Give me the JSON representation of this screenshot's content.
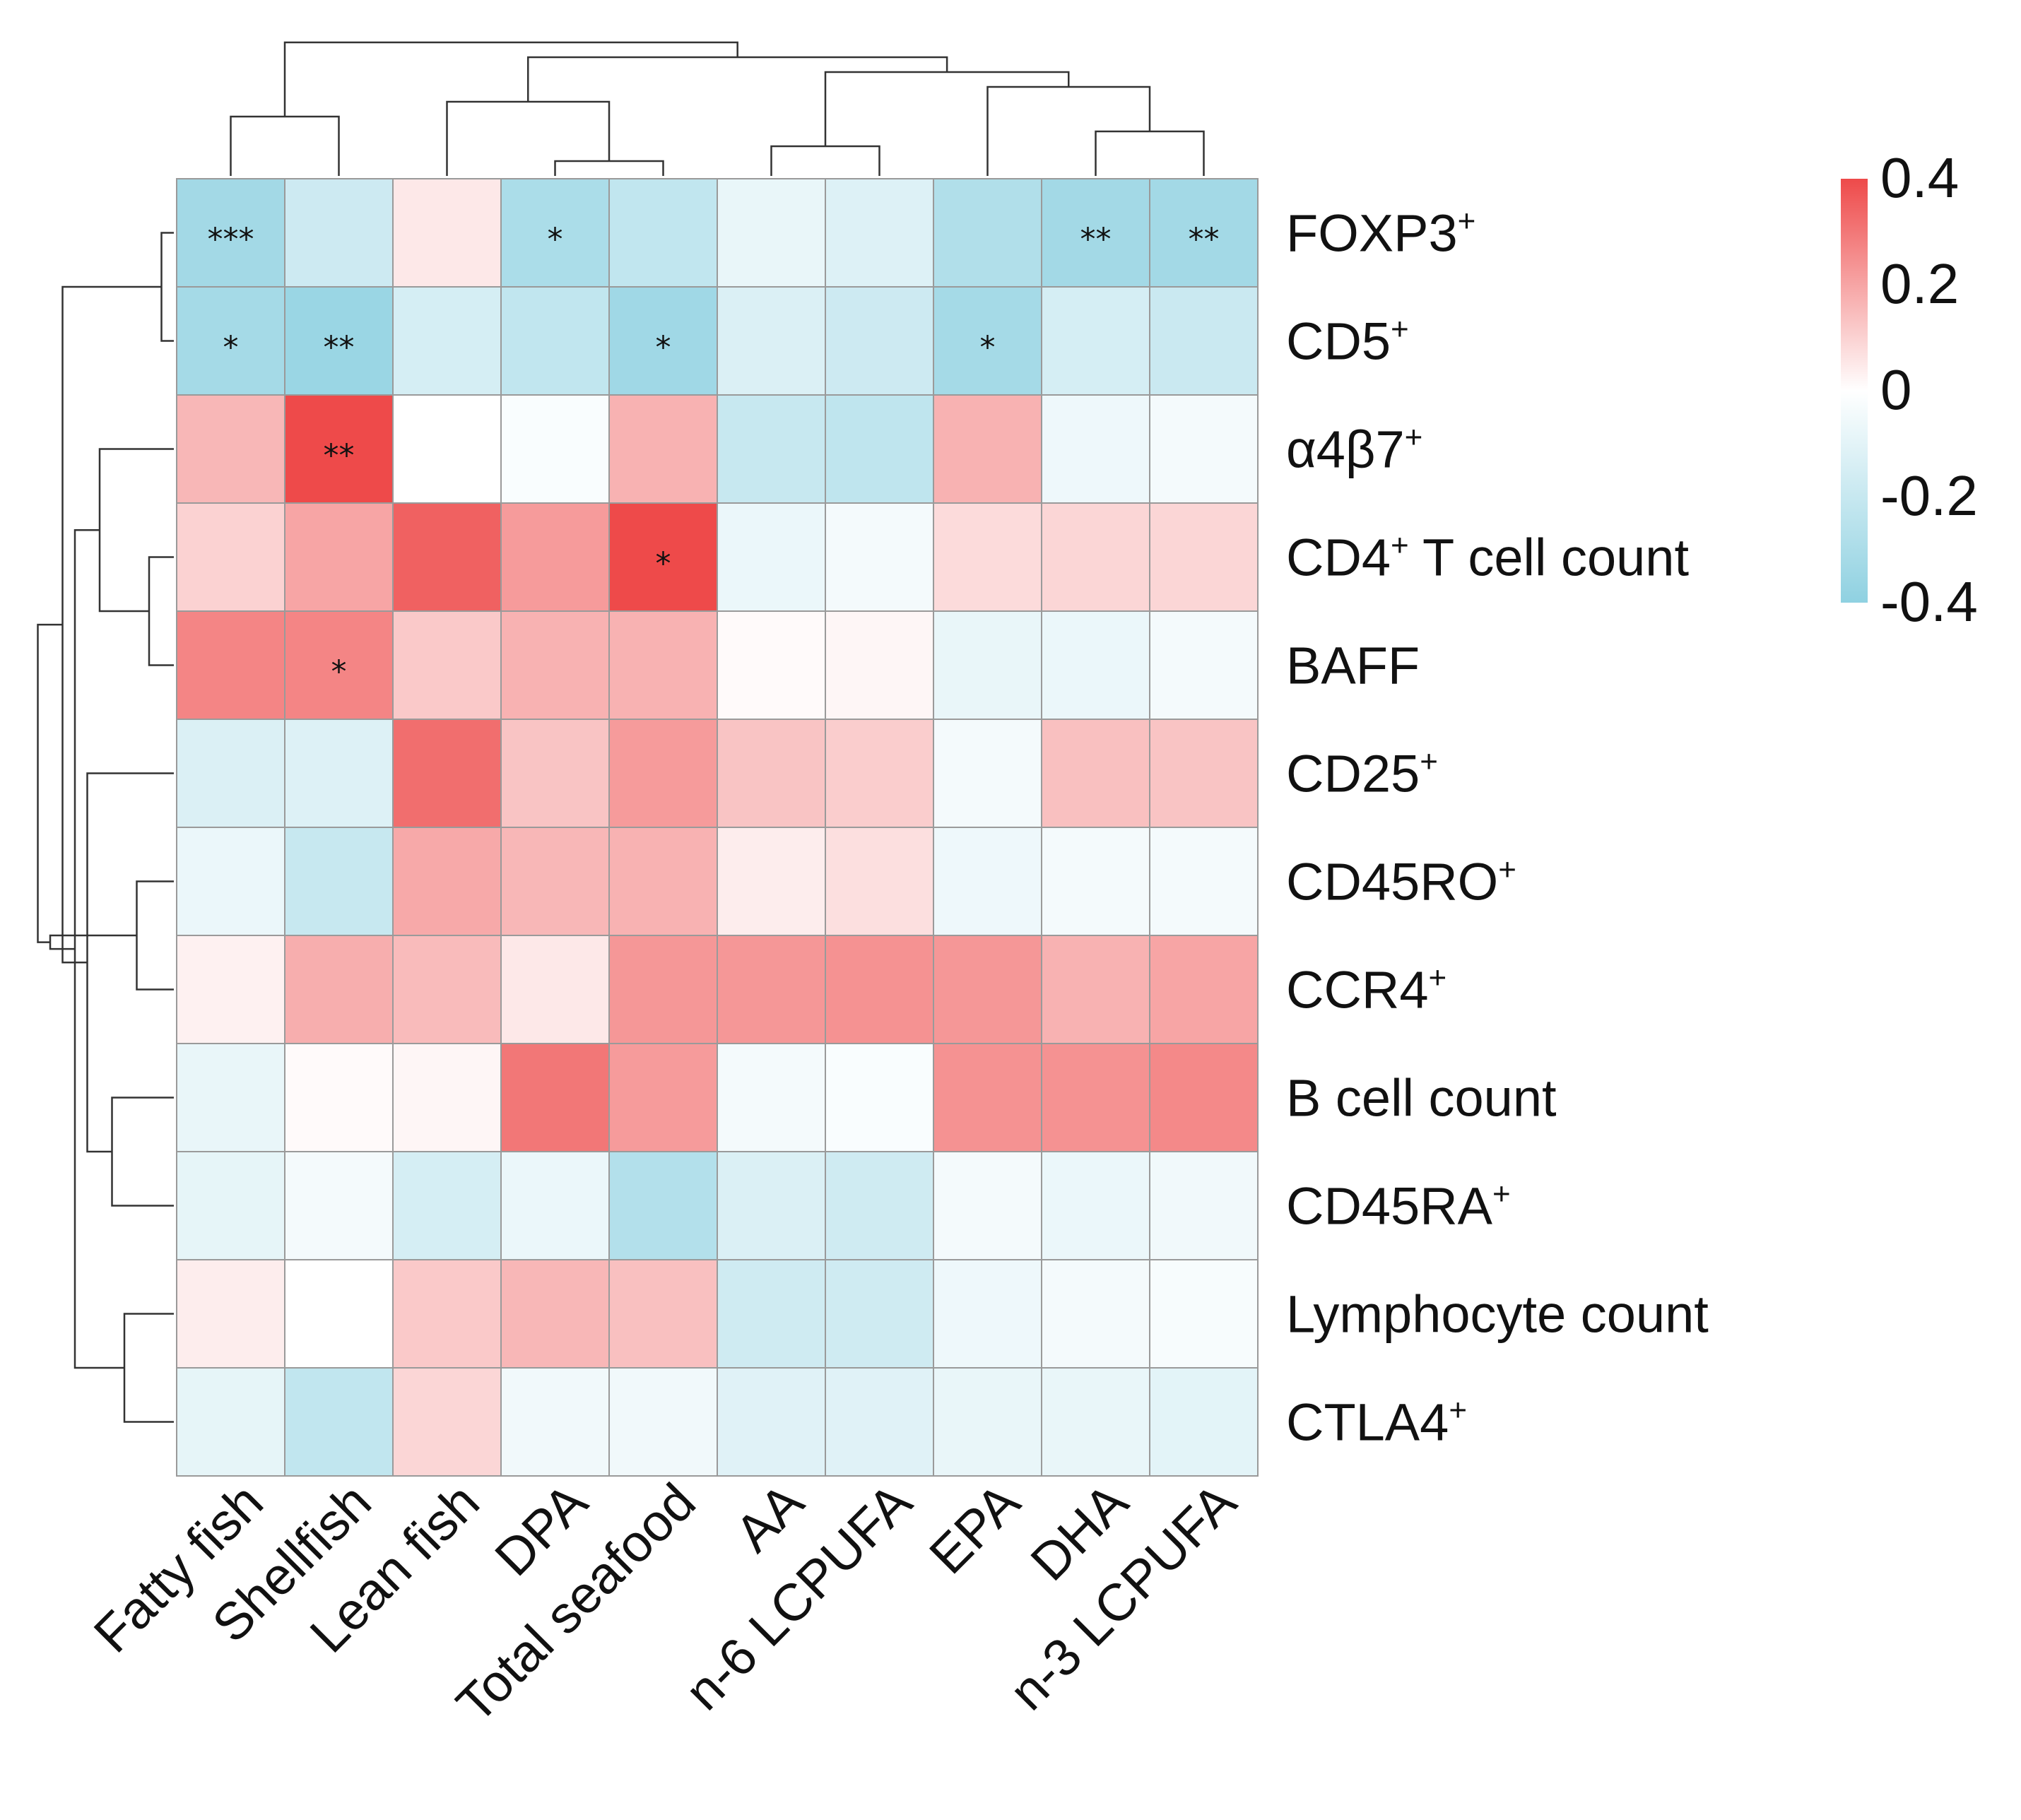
{
  "chart_data": {
    "type": "heatmap",
    "title": "",
    "columns": [
      "Fatty fish",
      "Shellfish",
      "Lean fish",
      "DPA",
      "Total seafood",
      "AA",
      "n-6 LCPUFA",
      "EPA",
      "DHA",
      "n-3 LCPUFA"
    ],
    "rows": [
      {
        "base": "FOXP3",
        "sup": "+",
        "suffix": ""
      },
      {
        "base": "CD5",
        "sup": "+",
        "suffix": ""
      },
      {
        "base": "α4β7",
        "sup": "+",
        "suffix": ""
      },
      {
        "base": "CD4",
        "sup": "+",
        "suffix": " T cell count"
      },
      {
        "base": "BAFF",
        "sup": "",
        "suffix": ""
      },
      {
        "base": "CD25",
        "sup": "+",
        "suffix": ""
      },
      {
        "base": "CD45RO",
        "sup": "+",
        "suffix": ""
      },
      {
        "base": "CCR4",
        "sup": "+",
        "suffix": ""
      },
      {
        "base": "B cell count",
        "sup": "",
        "suffix": ""
      },
      {
        "base": "CD45RA",
        "sup": "+",
        "suffix": ""
      },
      {
        "base": "Lymphocyte count",
        "sup": "",
        "suffix": ""
      },
      {
        "base": "CTLA4",
        "sup": "+",
        "suffix": ""
      }
    ],
    "values": [
      [
        -0.33,
        -0.18,
        0.05,
        -0.3,
        -0.22,
        -0.08,
        -0.12,
        -0.28,
        -0.33,
        -0.33
      ],
      [
        -0.32,
        -0.36,
        -0.15,
        -0.22,
        -0.34,
        -0.13,
        -0.18,
        -0.32,
        -0.15,
        -0.19
      ],
      [
        0.16,
        0.4,
        0.0,
        -0.02,
        0.17,
        -0.2,
        -0.23,
        0.17,
        -0.06,
        -0.04
      ],
      [
        0.1,
        0.2,
        0.35,
        0.22,
        0.4,
        -0.07,
        -0.04,
        0.08,
        0.09,
        0.09
      ],
      [
        0.27,
        0.27,
        0.12,
        0.17,
        0.17,
        0.01,
        0.02,
        -0.08,
        -0.07,
        -0.04
      ],
      [
        -0.13,
        -0.12,
        0.32,
        0.13,
        0.22,
        0.13,
        0.11,
        -0.04,
        0.14,
        0.13
      ],
      [
        -0.07,
        -0.2,
        0.19,
        0.16,
        0.17,
        0.04,
        0.07,
        -0.06,
        -0.04,
        -0.04
      ],
      [
        0.03,
        0.18,
        0.15,
        0.05,
        0.23,
        0.23,
        0.24,
        0.23,
        0.17,
        0.2
      ],
      [
        -0.08,
        0.01,
        0.02,
        0.3,
        0.22,
        -0.04,
        -0.02,
        0.24,
        0.24,
        0.26
      ],
      [
        -0.09,
        -0.04,
        -0.15,
        -0.07,
        -0.27,
        -0.13,
        -0.17,
        -0.04,
        -0.07,
        -0.05
      ],
      [
        0.04,
        0.0,
        0.12,
        0.16,
        0.14,
        -0.17,
        -0.17,
        -0.06,
        -0.04,
        -0.03
      ],
      [
        -0.09,
        -0.22,
        0.09,
        -0.05,
        -0.05,
        -0.11,
        -0.11,
        -0.08,
        -0.08,
        -0.1
      ]
    ],
    "significance": [
      [
        "***",
        "",
        "",
        "*",
        "",
        "",
        "",
        "",
        "**",
        "**"
      ],
      [
        "*",
        "**",
        "",
        "",
        "*",
        "",
        "",
        "*",
        "",
        ""
      ],
      [
        "",
        "**",
        "",
        "",
        "",
        "",
        "",
        "",
        "",
        ""
      ],
      [
        "",
        "",
        "",
        "",
        "*",
        "",
        "",
        "",
        "",
        ""
      ],
      [
        "",
        "*",
        "",
        "",
        "",
        "",
        "",
        "",
        "",
        ""
      ],
      [
        "",
        "",
        "",
        "",
        "",
        "",
        "",
        "",
        "",
        ""
      ],
      [
        "",
        "",
        "",
        "",
        "",
        "",
        "",
        "",
        "",
        ""
      ],
      [
        "",
        "",
        "",
        "",
        "",
        "",
        "",
        "",
        "",
        ""
      ],
      [
        "",
        "",
        "",
        "",
        "",
        "",
        "",
        "",
        "",
        ""
      ],
      [
        "",
        "",
        "",
        "",
        "",
        "",
        "",
        "",
        "",
        ""
      ],
      [
        "",
        "",
        "",
        "",
        "",
        "",
        "",
        "",
        "",
        ""
      ],
      [
        "",
        "",
        "",
        "",
        "",
        "",
        "",
        "",
        "",
        ""
      ]
    ],
    "color_scale": {
      "min": -0.4,
      "mid": 0,
      "max": 0.4,
      "low_color": "#8fd1e1",
      "mid_color": "#ffffff",
      "high_color": "#ee4a4a",
      "ticks": [
        "0.4",
        "0.2",
        "0",
        "-0.2",
        "-0.4"
      ]
    },
    "column_dendrogram": [
      [
        3,
        4
      ],
      [
        5,
        6
      ],
      [
        8,
        9
      ],
      [
        0,
        1
      ],
      [
        2,
        10
      ],
      [
        7,
        12
      ],
      [
        11,
        15
      ],
      [
        14,
        16
      ],
      [
        13,
        17
      ]
    ],
    "row_dendrogram": [
      [
        0,
        1
      ],
      [
        3,
        4
      ],
      [
        6,
        7
      ],
      [
        10,
        11
      ],
      [
        8,
        9
      ],
      [
        2,
        13
      ],
      [
        5,
        16
      ],
      [
        15,
        17
      ],
      [
        12,
        18
      ],
      [
        14,
        19
      ],
      [
        20,
        21
      ]
    ],
    "legend_position": "top-right"
  }
}
